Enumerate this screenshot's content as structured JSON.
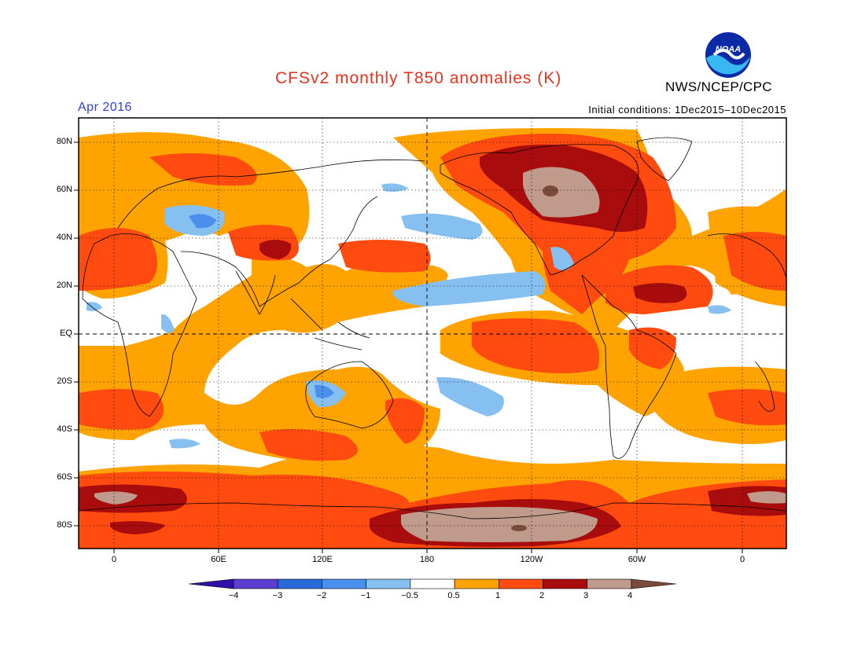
{
  "header": {
    "title": "CFSv2 monthly T850 anomalies (K)",
    "period": "Apr 2016",
    "initial_conditions": "Initial conditions: 1Dec2015–10Dec2015",
    "org": "NWS/NCEP/CPC",
    "logo_text": "NOAA"
  },
  "axes": {
    "lat_labels": [
      "80N",
      "60N",
      "40N",
      "20N",
      "EQ",
      "20S",
      "40S",
      "60S",
      "80S"
    ],
    "lon_labels": [
      "0",
      "60E",
      "120E",
      "180",
      "120W",
      "60W",
      "0"
    ]
  },
  "colorbar": {
    "labels": [
      "−4",
      "−3",
      "−2",
      "−1",
      "−0.5",
      "0.5",
      "1",
      "2",
      "3",
      "4"
    ],
    "colors": [
      "#3010a8",
      "#5a3ed0",
      "#2a6ad8",
      "#4a90ec",
      "#86c0f0",
      "#ffffff",
      "#ffa300",
      "#ff4a10",
      "#a80c0c",
      "#c09a8a",
      "#7a4a3a"
    ]
  },
  "colors": {
    "title": "#e8321e",
    "period": "#2d40e6"
  }
}
